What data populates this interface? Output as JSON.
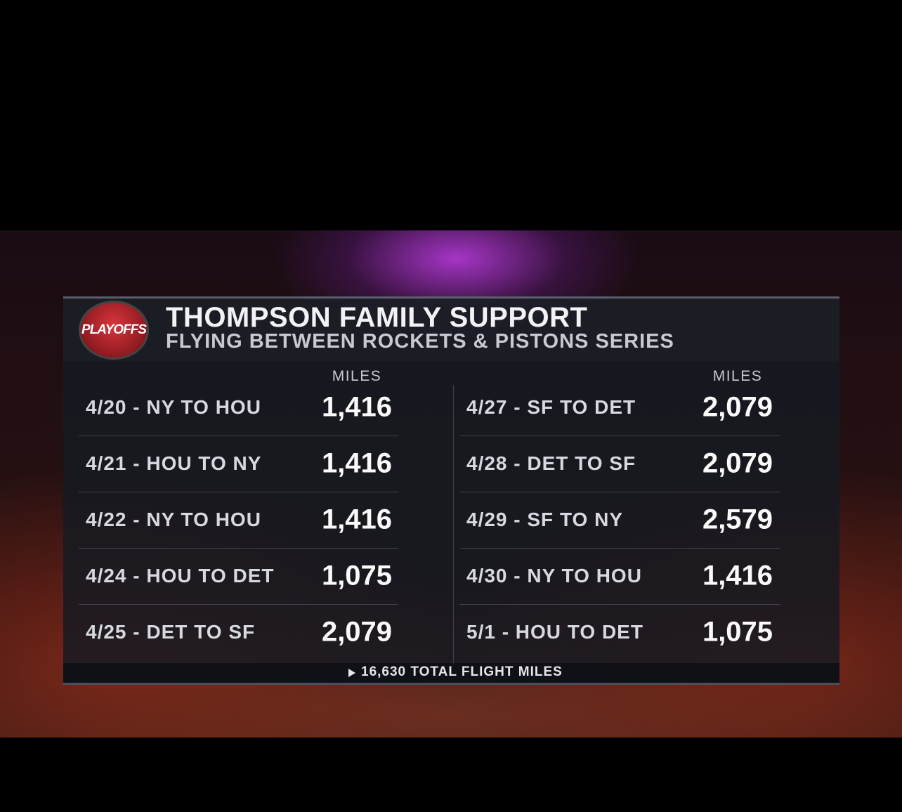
{
  "logo": "PLAYOFFS",
  "title": "THOMPSON FAMILY SUPPORT",
  "subtitle": "FLYING BETWEEN ROCKETS & PISTONS SERIES",
  "columns": [
    {
      "header": "MILES",
      "rows": [
        {
          "route": "4/20 - NY TO HOU",
          "miles": "1,416"
        },
        {
          "route": "4/21 - HOU TO NY",
          "miles": "1,416"
        },
        {
          "route": "4/22 - NY TO HOU",
          "miles": "1,416"
        },
        {
          "route": "4/24 - HOU TO DET",
          "miles": "1,075"
        },
        {
          "route": "4/25 - DET TO SF",
          "miles": "2,079"
        }
      ]
    },
    {
      "header": "MILES",
      "rows": [
        {
          "route": "4/27 - SF TO DET",
          "miles": "2,079"
        },
        {
          "route": "4/28 - DET TO SF",
          "miles": "2,079"
        },
        {
          "route": "4/29 - SF TO NY",
          "miles": "2,579"
        },
        {
          "route": "4/30 - NY TO HOU",
          "miles": "1,416"
        },
        {
          "route": "5/1 - HOU TO DET",
          "miles": "1,075"
        }
      ]
    }
  ],
  "footer": "16,630 TOTAL FLIGHT MILES"
}
